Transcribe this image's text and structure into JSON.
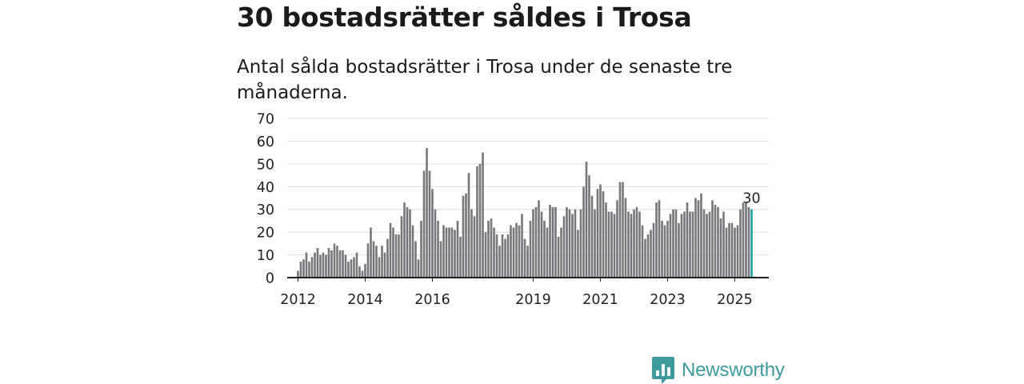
{
  "header": {
    "title": "30 bostadsrätter såldes i Trosa",
    "subtitle": "Antal sålda bostadsrätter i Trosa under de senaste tre månaderna."
  },
  "brand": {
    "name": "Newsworthy",
    "logo_icon": "newsworthy-chart-icon",
    "color": "#3d9b9d"
  },
  "colors": {
    "bar": "#77767b",
    "highlight": "#21a3a6"
  },
  "chart_data": {
    "type": "bar",
    "title": "30 bostadsrätter såldes i Trosa",
    "subtitle": "Antal sålda bostadsrätter i Trosa under de senaste tre månaderna.",
    "xlabel": "",
    "ylabel": "",
    "ylim": [
      0,
      70
    ],
    "yticks": [
      0,
      10,
      20,
      30,
      40,
      50,
      60,
      70
    ],
    "grid": true,
    "start_year": 2011,
    "start_month": 10,
    "xtick_labels": [
      {
        "year": 2012,
        "label": "2012"
      },
      {
        "year": 2014,
        "label": "2014"
      },
      {
        "year": 2016,
        "label": "2016"
      },
      {
        "year": 2019,
        "label": "2019"
      },
      {
        "year": 2021,
        "label": "2021"
      },
      {
        "year": 2023,
        "label": "2023"
      },
      {
        "year": 2025,
        "label": "2025"
      }
    ],
    "annotation": {
      "label": "30",
      "target": "last"
    },
    "values": [
      0,
      0,
      0,
      3,
      7,
      8,
      11,
      7,
      9,
      11,
      13,
      10,
      11,
      10,
      13,
      12,
      15,
      14,
      12,
      12,
      10,
      7,
      8,
      9,
      11,
      5,
      3,
      6,
      15,
      22,
      16,
      14,
      9,
      14,
      11,
      17,
      24,
      22,
      19,
      19,
      27,
      33,
      31,
      30,
      23,
      16,
      8,
      25,
      47,
      57,
      47,
      39,
      30,
      25,
      16,
      23,
      22,
      22,
      22,
      21,
      25,
      18,
      36,
      37,
      46,
      30,
      27,
      49,
      50,
      55,
      20,
      25,
      26,
      22,
      19,
      14,
      19,
      17,
      19,
      23,
      22,
      24,
      23,
      28,
      17,
      14,
      25,
      30,
      31,
      34,
      29,
      25,
      22,
      32,
      31,
      31,
      18,
      22,
      27,
      31,
      30,
      28,
      30,
      21,
      30,
      40,
      51,
      45,
      36,
      30,
      39,
      41,
      38,
      33,
      29,
      29,
      28,
      34,
      42,
      42,
      35,
      29,
      28,
      30,
      31,
      29,
      23,
      17,
      19,
      21,
      24,
      33,
      34,
      25,
      23,
      25,
      28,
      30,
      30,
      24,
      28,
      29,
      33,
      29,
      29,
      35,
      34,
      37,
      30,
      28,
      29,
      34,
      32,
      31,
      26,
      29,
      22,
      24,
      24,
      22,
      23,
      30,
      33,
      33,
      31,
      30
    ]
  }
}
